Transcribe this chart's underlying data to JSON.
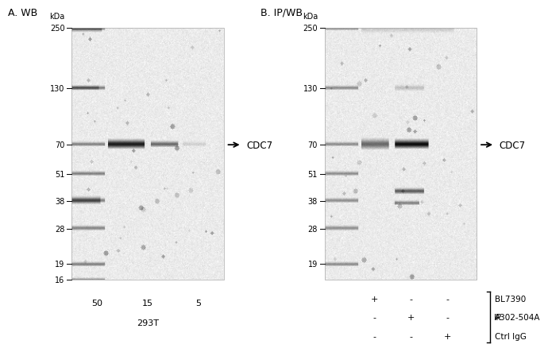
{
  "panel_A_title": "A. WB",
  "panel_B_title": "B. IP/WB",
  "kda_label": "kDa",
  "mw_markers_A": [
    250,
    130,
    70,
    51,
    38,
    28,
    19,
    16
  ],
  "mw_markers_B": [
    250,
    130,
    70,
    51,
    38,
    28,
    19
  ],
  "arrow_label": "CDC7",
  "panel_A_lanes": [
    "50",
    "15",
    "5"
  ],
  "panel_A_cell_line": "293T",
  "panel_B_rows": [
    [
      "+",
      "-",
      "-",
      "BL7390"
    ],
    [
      "-",
      "+",
      "-",
      "A302-504A"
    ],
    [
      "-",
      "-",
      "+",
      "Ctrl IgG"
    ]
  ],
  "panel_B_bracket_label": "IP",
  "font_size_title": 9,
  "font_size_kda": 7,
  "font_size_mw": 7,
  "font_size_arrow": 8.5,
  "font_size_table": 8
}
